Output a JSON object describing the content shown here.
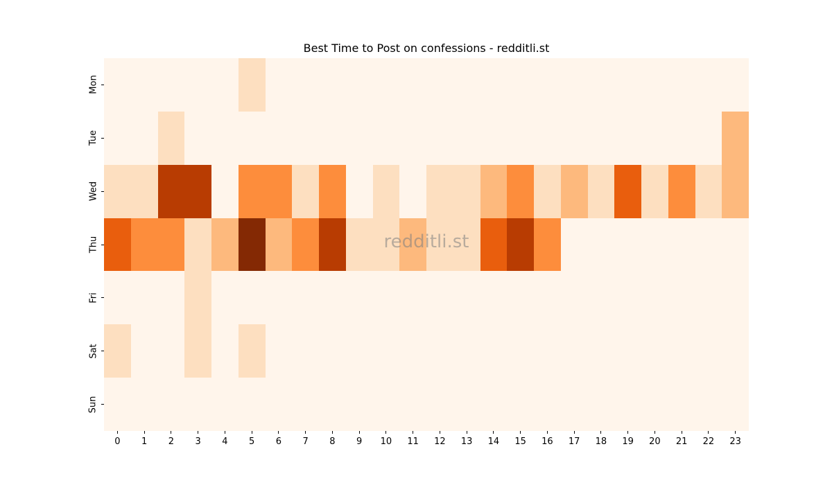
{
  "chart_data": {
    "type": "heatmap",
    "title": "Best Time to Post on confessions - redditli.st",
    "xlabel": "",
    "ylabel": "",
    "colormap": "Oranges",
    "x": [
      "0",
      "1",
      "2",
      "3",
      "4",
      "5",
      "6",
      "7",
      "8",
      "9",
      "10",
      "11",
      "12",
      "13",
      "14",
      "15",
      "16",
      "17",
      "18",
      "19",
      "20",
      "21",
      "22",
      "23"
    ],
    "y": [
      "Mon",
      "Tue",
      "Wed",
      "Thu",
      "Fri",
      "Sat",
      "Sun"
    ],
    "values": [
      [
        0,
        0,
        0,
        0,
        0,
        1,
        0,
        0,
        0,
        0,
        0,
        0,
        0,
        0,
        0,
        0,
        0,
        0,
        0,
        0,
        0,
        0,
        0,
        0
      ],
      [
        0,
        0,
        1,
        0,
        0,
        0,
        0,
        0,
        0,
        0,
        0,
        0,
        0,
        0,
        0,
        0,
        0,
        0,
        0,
        0,
        0,
        0,
        0,
        2
      ],
      [
        1,
        1,
        5,
        5,
        0,
        3,
        3,
        1,
        3,
        0,
        1,
        0,
        1,
        1,
        2,
        3,
        1,
        2,
        1,
        4,
        1,
        3,
        1,
        2
      ],
      [
        4,
        3,
        3,
        1,
        2,
        6,
        2,
        3,
        5,
        1,
        1,
        2,
        1,
        1,
        4,
        5,
        3,
        0,
        0,
        0,
        0,
        0,
        0,
        0
      ],
      [
        0,
        0,
        0,
        1,
        0,
        0,
        0,
        0,
        0,
        0,
        0,
        0,
        0,
        0,
        0,
        0,
        0,
        0,
        0,
        0,
        0,
        0,
        0,
        0
      ],
      [
        1,
        0,
        0,
        1,
        0,
        1,
        0,
        0,
        0,
        0,
        0,
        0,
        0,
        0,
        0,
        0,
        0,
        0,
        0,
        0,
        0,
        0,
        0,
        0
      ],
      [
        0,
        0,
        0,
        0,
        0,
        0,
        0,
        0,
        0,
        0,
        0,
        0,
        0,
        0,
        0,
        0,
        0,
        0,
        0,
        0,
        0,
        0,
        0,
        0
      ]
    ],
    "color_levels": [
      "#fff5eb",
      "#fddfc0",
      "#fdb97d",
      "#fd8d3c",
      "#e95e0d",
      "#b83c02",
      "#842904"
    ],
    "grid": false,
    "legend": "none",
    "watermark": "redditli.st"
  }
}
